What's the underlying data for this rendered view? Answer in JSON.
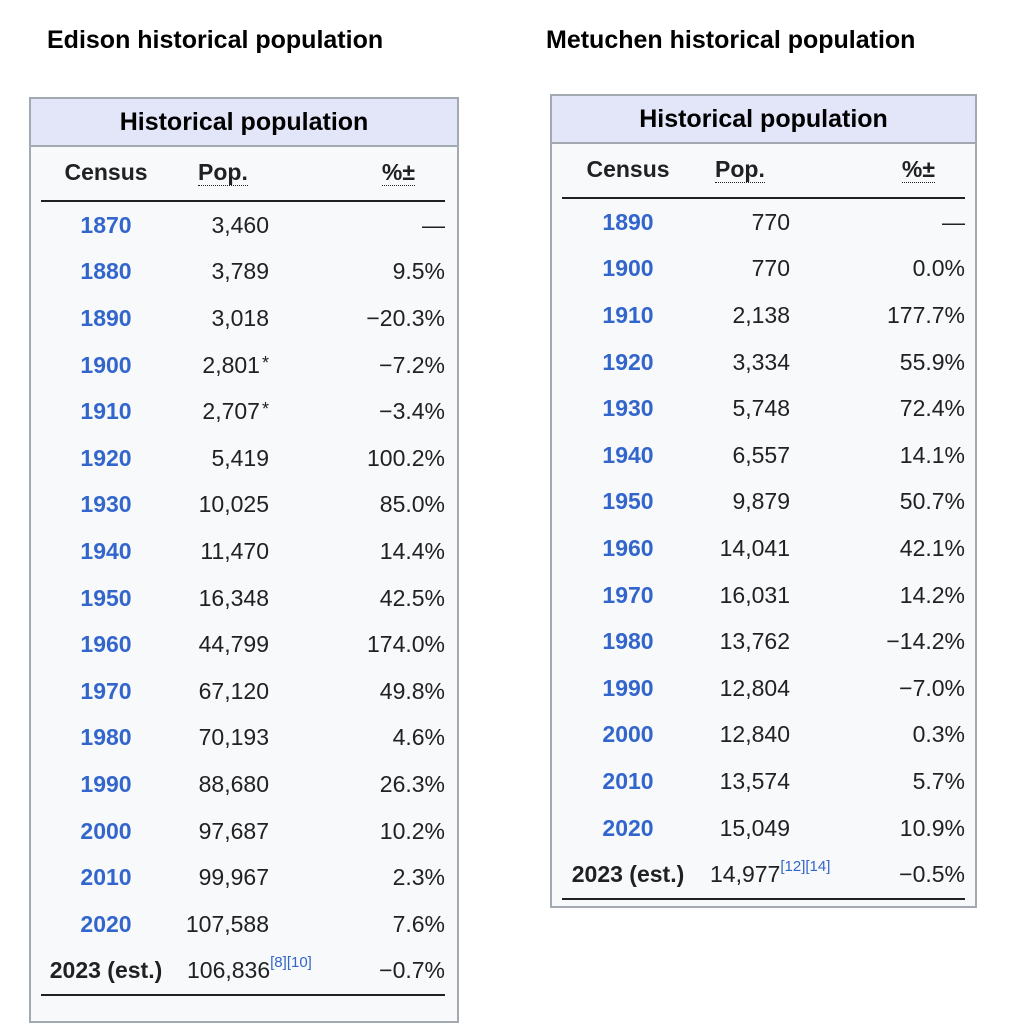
{
  "edison": {
    "panel_title": "Edison historical population",
    "box_title": "Historical population",
    "columns": [
      "Census",
      "Pop.",
      "",
      "%±"
    ],
    "rows": [
      {
        "year": "1870",
        "pop": "3,460",
        "note": "",
        "pct": "—"
      },
      {
        "year": "1880",
        "pop": "3,789",
        "note": "",
        "pct": "9.5%"
      },
      {
        "year": "1890",
        "pop": "3,018",
        "note": "",
        "pct": "−20.3%"
      },
      {
        "year": "1900",
        "pop": "2,801",
        "note": "*",
        "pct": "−7.2%"
      },
      {
        "year": "1910",
        "pop": "2,707",
        "note": "*",
        "pct": "−3.4%"
      },
      {
        "year": "1920",
        "pop": "5,419",
        "note": "",
        "pct": "100.2%"
      },
      {
        "year": "1930",
        "pop": "10,025",
        "note": "",
        "pct": "85.0%"
      },
      {
        "year": "1940",
        "pop": "11,470",
        "note": "",
        "pct": "14.4%"
      },
      {
        "year": "1950",
        "pop": "16,348",
        "note": "",
        "pct": "42.5%"
      },
      {
        "year": "1960",
        "pop": "44,799",
        "note": "",
        "pct": "174.0%"
      },
      {
        "year": "1970",
        "pop": "67,120",
        "note": "",
        "pct": "49.8%"
      },
      {
        "year": "1980",
        "pop": "70,193",
        "note": "",
        "pct": "4.6%"
      },
      {
        "year": "1990",
        "pop": "88,680",
        "note": "",
        "pct": "26.3%"
      },
      {
        "year": "2000",
        "pop": "97,687",
        "note": "",
        "pct": "10.2%"
      },
      {
        "year": "2010",
        "pop": "99,967",
        "note": "",
        "pct": "2.3%"
      },
      {
        "year": "2020",
        "pop": "107,588",
        "note": "",
        "pct": "7.6%"
      }
    ],
    "estimate": {
      "year": "2023 (est.)",
      "pop": "106,836",
      "refs": "[8][10]",
      "pct": "−0.7%"
    }
  },
  "metuchen": {
    "panel_title": "Metuchen historical population",
    "box_title": "Historical population",
    "columns": [
      "Census",
      "Pop.",
      "",
      "%±"
    ],
    "rows": [
      {
        "year": "1890",
        "pop": "770",
        "note": "",
        "pct": "—"
      },
      {
        "year": "1900",
        "pop": "770",
        "note": "",
        "pct": "0.0%"
      },
      {
        "year": "1910",
        "pop": "2,138",
        "note": "",
        "pct": "177.7%"
      },
      {
        "year": "1920",
        "pop": "3,334",
        "note": "",
        "pct": "55.9%"
      },
      {
        "year": "1930",
        "pop": "5,748",
        "note": "",
        "pct": "72.4%"
      },
      {
        "year": "1940",
        "pop": "6,557",
        "note": "",
        "pct": "14.1%"
      },
      {
        "year": "1950",
        "pop": "9,879",
        "note": "",
        "pct": "50.7%"
      },
      {
        "year": "1960",
        "pop": "14,041",
        "note": "",
        "pct": "42.1%"
      },
      {
        "year": "1970",
        "pop": "16,031",
        "note": "",
        "pct": "14.2%"
      },
      {
        "year": "1980",
        "pop": "13,762",
        "note": "",
        "pct": "−14.2%"
      },
      {
        "year": "1990",
        "pop": "12,804",
        "note": "",
        "pct": "−7.0%"
      },
      {
        "year": "2000",
        "pop": "12,840",
        "note": "",
        "pct": "0.3%"
      },
      {
        "year": "2010",
        "pop": "13,574",
        "note": "",
        "pct": "5.7%"
      },
      {
        "year": "2020",
        "pop": "15,049",
        "note": "",
        "pct": "10.9%"
      }
    ],
    "estimate": {
      "year": "2023 (est.)",
      "pop": "14,977",
      "refs": "[12][14]",
      "pct": "−0.5%"
    }
  },
  "colors": {
    "link_blue": "#3366cc",
    "header_bg": "#e3e5f8",
    "box_bg": "#f8f9fa",
    "border": "#a2a9b1",
    "text": "#202122"
  }
}
